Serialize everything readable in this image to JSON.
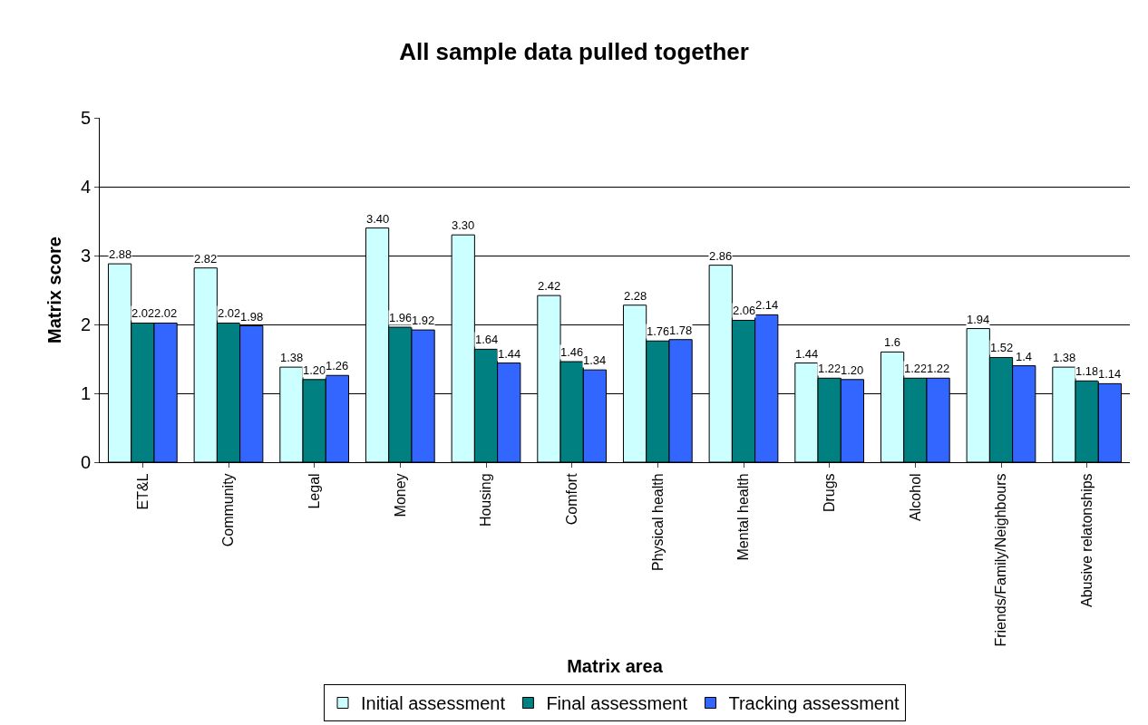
{
  "chart_data": {
    "type": "bar",
    "title": "All sample data pulled together",
    "xlabel": "Matrix area",
    "ylabel": "Matrix score",
    "categories": [
      "ET&L",
      "Community",
      "Legal",
      "Money",
      "Housing",
      "Comfort",
      "Physical health",
      "Mental health",
      "Drugs",
      "Alcohol",
      "Friends/Family/Neighbours",
      "Abusive relatonships"
    ],
    "series": [
      {
        "name": "Initial assessment",
        "color": "#ccffff",
        "values": [
          2.88,
          2.82,
          1.38,
          3.4,
          3.3,
          2.42,
          2.28,
          2.86,
          1.44,
          1.6,
          1.94,
          1.38
        ],
        "value_labels": [
          "2.88",
          "2.82",
          "1.38",
          "3.40",
          "3.30",
          "2.42",
          "2.28",
          "2.86",
          "1.44",
          "1.6",
          "1.94",
          "1.38"
        ]
      },
      {
        "name": "Final assessment",
        "color": "#008080",
        "values": [
          2.02,
          2.02,
          1.2,
          1.96,
          1.64,
          1.46,
          1.76,
          2.06,
          1.22,
          1.22,
          1.52,
          1.18
        ],
        "value_labels": [
          "2.02",
          "2.02",
          "1.20",
          "1.96",
          "1.64",
          "1.46",
          "1.76",
          "2.06",
          "1.22",
          "1.22",
          "1.52",
          "1.18"
        ]
      },
      {
        "name": "Tracking assessment",
        "color": "#3366ff",
        "values": [
          2.02,
          1.98,
          1.26,
          1.92,
          1.44,
          1.34,
          1.78,
          2.14,
          1.2,
          1.22,
          1.4,
          1.14
        ],
        "value_labels": [
          "2.02",
          "1.98",
          "1.26",
          "1.92",
          "1.44",
          "1.34",
          "1.78",
          "2.14",
          "1.20",
          "1.22",
          "1.4",
          "1.14"
        ]
      }
    ],
    "ylim": [
      0,
      5
    ],
    "yticks": [
      0,
      1,
      2,
      3,
      4,
      5
    ],
    "grid": "y",
    "legend": "bottom"
  }
}
